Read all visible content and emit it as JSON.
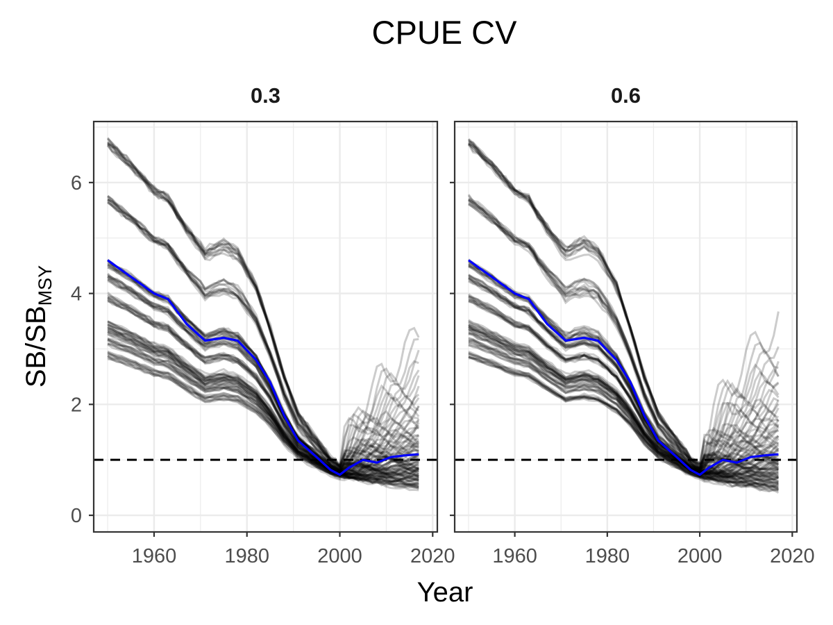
{
  "chart_data": {
    "type": "line",
    "title": "CPUE CV",
    "xlabel": "Year",
    "ylabel": {
      "main": "SB/SB",
      "subscript": "MSY"
    },
    "xlim": [
      1947,
      2021
    ],
    "ylim": [
      -0.3,
      7.1
    ],
    "x_ticks": [
      1960,
      1980,
      2000,
      2020
    ],
    "y_ticks": [
      0,
      2,
      4,
      6
    ],
    "grid": true,
    "reference_line": {
      "y": 1.0,
      "style": "dashed",
      "color": "#000000"
    },
    "colors": {
      "trajectory": "#000000",
      "median": "#0000ff",
      "grid": "#ebebeb",
      "panel_border": "#333333"
    },
    "panels": [
      {
        "label": "0.3",
        "median": {
          "x": [
            1950,
            1955,
            1960,
            1963,
            1967,
            1971,
            1975,
            1978,
            1982,
            1985,
            1988,
            1991,
            1995,
            1998,
            2000,
            2002,
            2005,
            2008,
            2011,
            2014,
            2017
          ],
          "y": [
            4.6,
            4.3,
            4.0,
            3.9,
            3.45,
            3.15,
            3.2,
            3.15,
            2.8,
            2.4,
            1.8,
            1.35,
            1.05,
            0.82,
            0.73,
            0.86,
            1.0,
            0.95,
            1.05,
            1.08,
            1.1
          ]
        },
        "trajectory_groups": [
          {
            "start": 6.78,
            "count": 12,
            "end_range": [
              1.1,
              3.2
            ]
          },
          {
            "start": 5.75,
            "count": 12,
            "end_range": [
              0.9,
              2.6
            ]
          },
          {
            "start": 4.6,
            "count": 12,
            "end_range": [
              0.75,
              2.0
            ]
          },
          {
            "start": 4.35,
            "count": 11,
            "end_range": [
              0.65,
              1.6
            ]
          },
          {
            "start": 3.98,
            "count": 11,
            "end_range": [
              0.6,
              1.4
            ]
          },
          {
            "start": 3.5,
            "count": 11,
            "end_range": [
              0.55,
              1.2
            ]
          },
          {
            "start": 3.38,
            "count": 10,
            "end_range": [
              0.5,
              1.05
            ]
          },
          {
            "start": 3.2,
            "count": 10,
            "end_range": [
              0.5,
              0.95
            ]
          },
          {
            "start": 2.95,
            "count": 10,
            "end_range": [
              0.45,
              0.85
            ]
          }
        ]
      },
      {
        "label": "0.6",
        "median": {
          "x": [
            1950,
            1955,
            1960,
            1963,
            1967,
            1971,
            1975,
            1978,
            1982,
            1985,
            1988,
            1991,
            1995,
            1998,
            2000,
            2002,
            2005,
            2008,
            2011,
            2014,
            2017
          ],
          "y": [
            4.6,
            4.3,
            4.0,
            3.9,
            3.45,
            3.15,
            3.2,
            3.15,
            2.8,
            2.4,
            1.8,
            1.35,
            1.05,
            0.82,
            0.73,
            0.86,
            1.0,
            0.95,
            1.05,
            1.08,
            1.1
          ]
        },
        "trajectory_groups": [
          {
            "start": 6.78,
            "count": 12,
            "end_range": [
              1.1,
              3.5
            ]
          },
          {
            "start": 5.75,
            "count": 12,
            "end_range": [
              0.9,
              2.8
            ]
          },
          {
            "start": 4.6,
            "count": 12,
            "end_range": [
              0.75,
              2.1
            ]
          },
          {
            "start": 4.35,
            "count": 11,
            "end_range": [
              0.6,
              1.7
            ]
          },
          {
            "start": 3.98,
            "count": 11,
            "end_range": [
              0.55,
              1.45
            ]
          },
          {
            "start": 3.5,
            "count": 11,
            "end_range": [
              0.5,
              1.2
            ]
          },
          {
            "start": 3.38,
            "count": 10,
            "end_range": [
              0.48,
              1.05
            ]
          },
          {
            "start": 3.2,
            "count": 10,
            "end_range": [
              0.45,
              0.95
            ]
          },
          {
            "start": 2.95,
            "count": 10,
            "end_range": [
              0.42,
              0.85
            ]
          }
        ]
      }
    ]
  }
}
